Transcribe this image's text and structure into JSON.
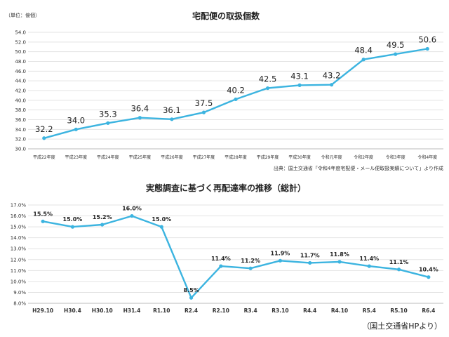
{
  "chart_data": [
    {
      "type": "line",
      "title": "宅配便の取扱個数",
      "unit_label": "（単位：億個）",
      "source_note": "出典：国土交通省「令和4年度宅配便・メール便取扱実績について」より作成",
      "categories": [
        "平成22年度",
        "平成23年度",
        "平成24年度",
        "平成25年度",
        "平成26年度",
        "平成27年度",
        "平成28年度",
        "平成29年度",
        "平成30年度",
        "令和元年度",
        "令和2年度",
        "令和3年度",
        "令和4年度"
      ],
      "values": [
        32.2,
        34.0,
        35.3,
        36.4,
        36.1,
        37.5,
        40.2,
        42.5,
        43.1,
        43.2,
        48.4,
        49.5,
        50.6
      ],
      "data_labels": [
        "32.2",
        "34.0",
        "35.3",
        "36.4",
        "36.1",
        "37.5",
        "40.2",
        "42.5",
        "43.1",
        "43.2",
        "48.4",
        "49.5",
        "50.6"
      ],
      "ylim": [
        30.0,
        54.0
      ],
      "yticks": [
        30.0,
        32.0,
        34.0,
        36.0,
        38.0,
        40.0,
        42.0,
        44.0,
        46.0,
        48.0,
        50.0,
        52.0,
        54.0
      ],
      "ytick_labels": [
        "30.0",
        "32.0",
        "34.0",
        "36.0",
        "38.0",
        "40.0",
        "42.0",
        "44.0",
        "46.0",
        "48.0",
        "50.0",
        "52.0",
        "54.0"
      ],
      "grid": true,
      "color": "#3cb4e0"
    },
    {
      "type": "line",
      "title": "実態調査に基づく再配達率の推移（総計）",
      "categories": [
        "H29.10",
        "H30.4",
        "H30.10",
        "H31.4",
        "R1.10",
        "R2.4",
        "R2.10",
        "R3.4",
        "R3.10",
        "R4.4",
        "R4.10",
        "R5.4",
        "R5.10",
        "R6.4"
      ],
      "values": [
        15.5,
        15.0,
        15.2,
        16.0,
        15.0,
        8.5,
        11.4,
        11.2,
        11.9,
        11.7,
        11.8,
        11.4,
        11.1,
        10.4
      ],
      "data_labels": [
        "15.5%",
        "15.0%",
        "15.2%",
        "16.0%",
        "15.0%",
        "8.5%",
        "11.4%",
        "11.2%",
        "11.9%",
        "11.7%",
        "11.8%",
        "11.4%",
        "11.1%",
        "10.4%"
      ],
      "ylim": [
        8.0,
        17.0
      ],
      "yticks": [
        8.0,
        9.0,
        10.0,
        11.0,
        12.0,
        13.0,
        14.0,
        15.0,
        16.0,
        17.0
      ],
      "ytick_labels": [
        "8.0%",
        "9.0%",
        "10.0%",
        "11.0%",
        "12.0%",
        "13.0%",
        "14.0%",
        "15.0%",
        "16.0%",
        "17.0%"
      ],
      "grid": true,
      "color": "#3cb4e0"
    }
  ],
  "footer": "（国土交通省HPより）"
}
